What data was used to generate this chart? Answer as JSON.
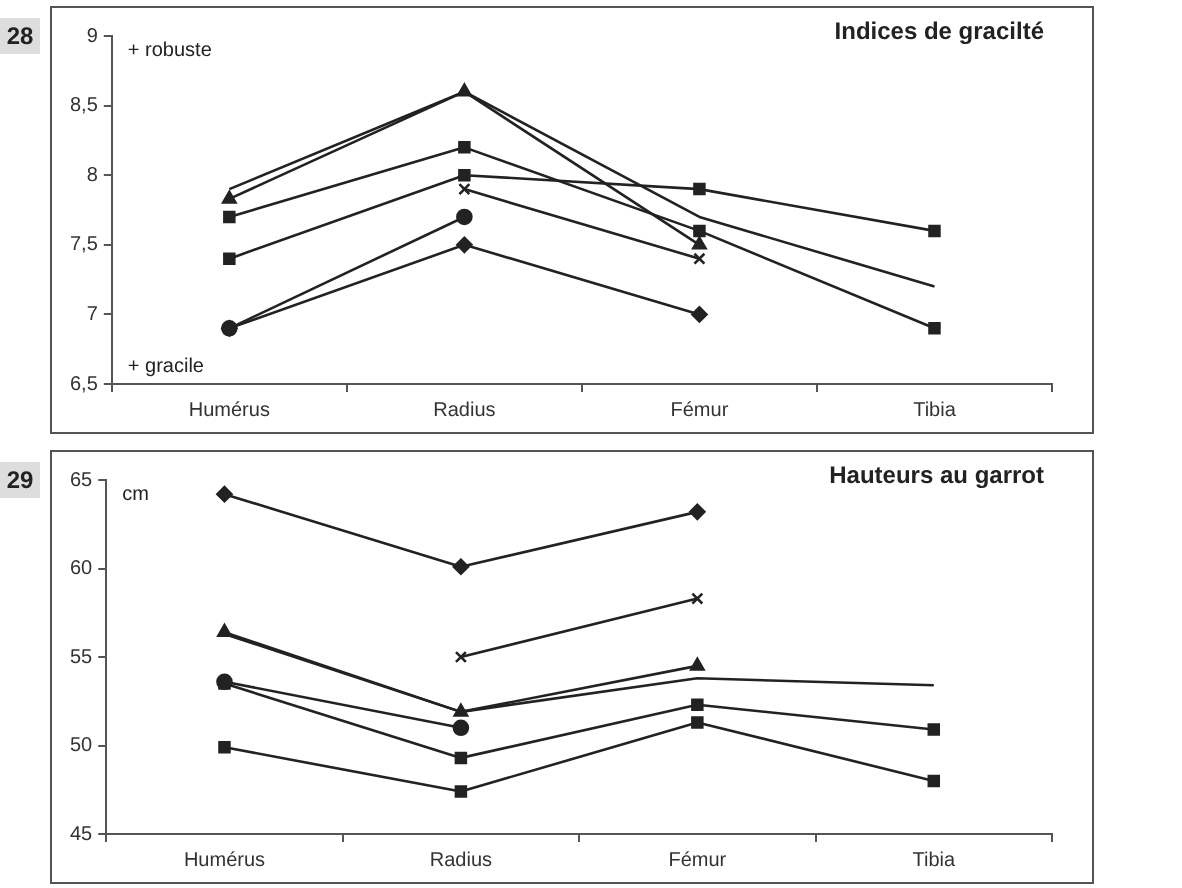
{
  "chart_data": [
    {
      "type": "line",
      "title": "Indices de gracilté",
      "annotations": [
        "28",
        "+ robuste",
        "+ gracile"
      ],
      "categories": [
        "Humérus",
        "Radius",
        "Fémur",
        "Tibia"
      ],
      "ylim": [
        6.5,
        9
      ],
      "yticks": [
        {
          "value": 6.5,
          "label": "6,5"
        },
        {
          "value": 7,
          "label": "7"
        },
        {
          "value": 7.5,
          "label": "7,5"
        },
        {
          "value": 8,
          "label": "8"
        },
        {
          "value": 8.5,
          "label": "8,5"
        },
        {
          "value": 9,
          "label": "9"
        }
      ],
      "grid": false,
      "legend": false,
      "series": [
        {
          "color": "#222222",
          "marker": "triangle",
          "values": [
            7.83,
            8.6,
            7.5,
            null
          ]
        },
        {
          "color": "#222222",
          "marker": "none",
          "values": [
            7.9,
            8.6,
            7.7,
            7.2
          ]
        },
        {
          "color": "#222222",
          "marker": "square",
          "values": [
            7.7,
            8.2,
            7.6,
            6.9
          ]
        },
        {
          "color": "#222222",
          "marker": "square",
          "values": [
            7.4,
            8.0,
            7.9,
            7.6
          ]
        },
        {
          "color": "#222222",
          "marker": "cross",
          "values": [
            null,
            7.9,
            7.4,
            null
          ]
        },
        {
          "color": "#222222",
          "marker": "circle",
          "values": [
            6.9,
            7.7,
            null,
            null
          ]
        },
        {
          "color": "#222222",
          "marker": "diamond",
          "values": [
            6.9,
            7.5,
            7.0,
            null
          ]
        }
      ]
    },
    {
      "type": "line",
      "title": "Hauteurs au garrot",
      "annotations": [
        "29",
        "cm"
      ],
      "categories": [
        "Humérus",
        "Radius",
        "Fémur",
        "Tibia"
      ],
      "ylim": [
        45,
        65
      ],
      "yticks": [
        45,
        50,
        55,
        60,
        65
      ],
      "grid": false,
      "legend": false,
      "series": [
        {
          "color": "#222222",
          "marker": "diamond",
          "values": [
            64.2,
            60.1,
            63.2,
            null
          ]
        },
        {
          "color": "#222222",
          "marker": "cross",
          "values": [
            null,
            55.0,
            58.3,
            null
          ]
        },
        {
          "color": "#222222",
          "marker": "triangle",
          "values": [
            56.4,
            51.9,
            54.5,
            null
          ]
        },
        {
          "color": "#222222",
          "marker": "none",
          "values": [
            56.3,
            51.9,
            53.8,
            53.4
          ]
        },
        {
          "color": "#222222",
          "marker": "circle",
          "values": [
            53.6,
            51.0,
            null,
            null
          ]
        },
        {
          "color": "#222222",
          "marker": "square",
          "values": [
            53.5,
            49.3,
            52.3,
            50.9
          ]
        },
        {
          "color": "#222222",
          "marker": "square",
          "values": [
            49.9,
            47.4,
            51.3,
            48.0
          ]
        }
      ]
    }
  ]
}
